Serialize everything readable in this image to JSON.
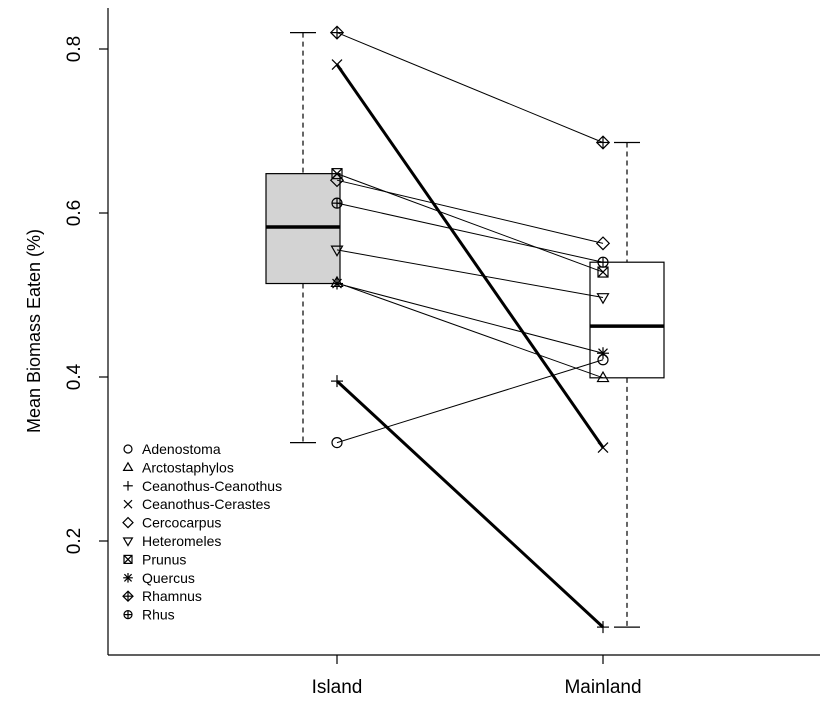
{
  "chart_data": {
    "type": "boxplot-paired",
    "title": "",
    "xlabel": "",
    "ylabel": "Mean Biomass Eaten (%)",
    "categories": [
      "Island",
      "Mainland"
    ],
    "ylim": [
      0.05,
      0.875
    ],
    "yticks": [
      0.2,
      0.4,
      0.6,
      0.8
    ],
    "ytick_labels": [
      "0.2",
      "0.4",
      "0.6",
      "0.8"
    ],
    "legend_position": "bottom-left",
    "boxes": [
      {
        "category": "Island",
        "min": 0.32,
        "q1": 0.514,
        "median": 0.583,
        "q3": 0.648,
        "max": 0.82,
        "fill": "#d3d3d3"
      },
      {
        "category": "Mainland",
        "min": 0.095,
        "q1": 0.399,
        "median": 0.462,
        "q3": 0.54,
        "max": 0.686,
        "fill": "#ffffff"
      }
    ],
    "series": [
      {
        "name": "Adenostoma",
        "marker": "circle",
        "island": 0.32,
        "mainland": 0.421,
        "bold": false
      },
      {
        "name": "Arctostaphylos",
        "marker": "triangle-up",
        "island": 0.515,
        "mainland": 0.399,
        "bold": false
      },
      {
        "name": "Ceanothus-Ceanothus",
        "marker": "plus",
        "island": 0.395,
        "mainland": 0.095,
        "bold": true
      },
      {
        "name": "Ceanothus-Cerastes",
        "marker": "cross",
        "island": 0.781,
        "mainland": 0.314,
        "bold": true
      },
      {
        "name": "Cercocarpus",
        "marker": "diamond",
        "island": 0.64,
        "mainland": 0.563,
        "bold": false
      },
      {
        "name": "Heteromeles",
        "marker": "triangle-down",
        "island": 0.555,
        "mainland": 0.497,
        "bold": false
      },
      {
        "name": "Prunus",
        "marker": "square-cross",
        "island": 0.648,
        "mainland": 0.528,
        "bold": false
      },
      {
        "name": "Quercus",
        "marker": "asterisk",
        "island": 0.514,
        "mainland": 0.429,
        "bold": false
      },
      {
        "name": "Rhamnus",
        "marker": "diamond-plus",
        "island": 0.82,
        "mainland": 0.686,
        "bold": false
      },
      {
        "name": "Rhus",
        "marker": "circle-plus",
        "island": 0.612,
        "mainland": 0.54,
        "bold": false
      }
    ]
  }
}
